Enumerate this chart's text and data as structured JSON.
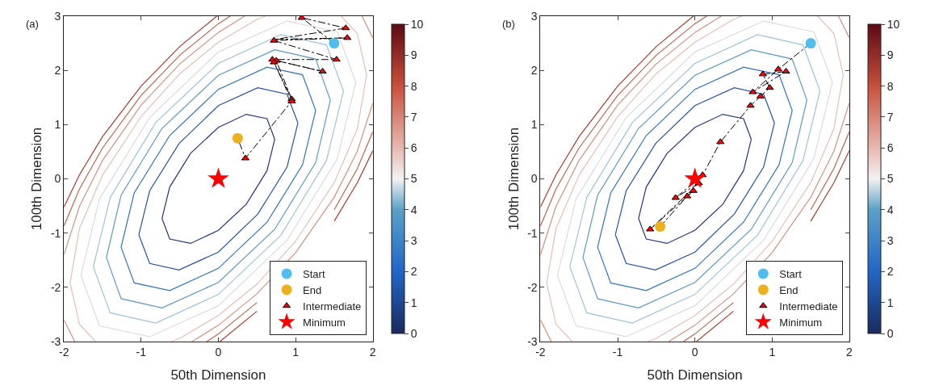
{
  "chart_data": [
    {
      "type": "scatter",
      "title": "(a)",
      "xlabel": "50th Dimension",
      "ylabel": "100th Dimension",
      "xlim": [
        -2,
        2
      ],
      "ylim": [
        -3,
        3
      ],
      "xticks": [
        -2,
        -1,
        0,
        1,
        2
      ],
      "yticks": [
        -3,
        -2,
        -1,
        0,
        1,
        2,
        3
      ],
      "clim": [
        0,
        10
      ],
      "cticks": [
        0,
        1,
        2,
        3,
        4,
        5,
        6,
        7,
        8,
        9,
        10
      ],
      "legend": "bottom right",
      "series": [
        {
          "type": "line",
          "color": "#26357f",
          "x": [
            0.73,
            0.63,
            0.36,
            0,
            -0.36,
            -0.63,
            -0.73,
            -0.63,
            -0.36,
            0,
            0.36,
            0.63,
            0.73
          ],
          "values": [
            0.73,
            1.11,
            1.19,
            0.95,
            0.47,
            -0.15,
            -0.73,
            -1.11,
            -1.19,
            -0.95,
            -0.47,
            0.15,
            0.73
          ]
        },
        {
          "type": "line",
          "color": "#2451b0",
          "x": [
            1.03,
            0.89,
            0.51,
            0,
            -0.51,
            -0.89,
            -1.03,
            -0.89,
            -0.51,
            0,
            0.51,
            0.89,
            1.03
          ],
          "values": [
            1.03,
            1.56,
            1.68,
            1.35,
            0.65,
            -0.22,
            -1.03,
            -1.56,
            -1.68,
            -1.35,
            -0.65,
            0.22,
            1.03
          ]
        },
        {
          "type": "line",
          "color": "#2f72c4",
          "x": [
            1.26,
            1.09,
            0.63,
            0,
            -0.63,
            -1.09,
            -1.26,
            -1.09,
            -0.63,
            0,
            0.63,
            1.09,
            1.26
          ],
          "values": [
            1.26,
            1.92,
            2.06,
            1.65,
            0.8,
            -0.26,
            -1.26,
            -1.92,
            -2.06,
            -1.65,
            -0.8,
            0.26,
            1.26
          ]
        },
        {
          "type": "line",
          "color": "#5b9ac6",
          "x": [
            1.45,
            1.26,
            0.73,
            0,
            -0.73,
            -1.26,
            -1.45,
            -1.26,
            -0.73,
            0,
            0.73,
            1.26,
            1.45
          ],
          "values": [
            1.45,
            2.21,
            2.38,
            1.91,
            0.93,
            -0.3,
            -1.45,
            -2.21,
            -2.38,
            -1.91,
            -0.93,
            0.3,
            1.45
          ]
        },
        {
          "type": "line",
          "color": "#9fc4d8",
          "x": [
            1.62,
            1.4,
            0.81,
            0,
            -0.81,
            -1.4,
            -1.62,
            -1.4,
            -0.81,
            0,
            0.81,
            1.4,
            1.62
          ],
          "values": [
            1.62,
            2.47,
            2.66,
            2.13,
            1.04,
            -0.34,
            -1.62,
            -2.47,
            -2.66,
            -2.13,
            -1.04,
            0.34,
            1.62
          ]
        },
        {
          "type": "line",
          "color": "#d9dde0",
          "x": [
            1.78,
            1.54,
            0.89,
            0,
            -0.89,
            -1.54,
            -1.78,
            -1.54,
            -0.89,
            0,
            0.89,
            1.54,
            1.78
          ],
          "values": [
            1.78,
            2.71,
            2.91,
            2.34,
            1.13,
            -0.37,
            -1.78,
            -2.71,
            -2.91,
            -2.34,
            -1.13,
            0.37,
            1.78
          ]
        },
        {
          "type": "line",
          "color": "#e6c0b6",
          "x": [
            1.59,
            1.8,
            1.92,
            1.8,
            1.5,
            1,
            0.5,
            0,
            -0.5,
            -0.61,
            null,
            -1.59,
            -1.8,
            -1.92,
            -1.8,
            -1.5,
            -1,
            -0.5,
            0,
            0.5,
            0.61
          ],
          "values": [
            3,
            2.68,
            1.92,
            0.92,
            -0.07,
            -1.15,
            -1.94,
            -2.52,
            -2.94,
            -3,
            null,
            -3,
            -2.68,
            -1.92,
            -0.92,
            0.07,
            1.15,
            1.94,
            2.52,
            2.94,
            3
          ]
        },
        {
          "type": "line",
          "color": "#d9907c",
          "x": [
            1.86,
            2,
            null,
            2,
            1.8,
            1.5,
            1,
            0.5,
            0,
            -0.34,
            null,
            -1.86,
            -2,
            null,
            -2,
            -1.8,
            -1.5,
            -1,
            -0.5,
            0,
            0.34
          ],
          "values": [
            3,
            2.6,
            null,
            1.4,
            0.51,
            -0.34,
            -1.36,
            -2.12,
            -2.7,
            -3,
            null,
            -3,
            -2.6,
            null,
            -1.4,
            -0.51,
            0.34,
            1.36,
            2.12,
            2.7,
            3
          ]
        },
        {
          "type": "line",
          "color": "#c8604a",
          "x": [
            2,
            1.8,
            1.5,
            1,
            0.5,
            0,
            -0.15,
            null,
            -2,
            -1.8,
            -1.5,
            -1,
            -0.5,
            0,
            0.15
          ],
          "values": [
            0.87,
            0.19,
            -0.57,
            null,
            -2.28,
            -2.86,
            -3,
            null,
            -0.87,
            -0.19,
            0.57,
            1.54,
            2.28,
            2.86,
            3
          ]
        },
        {
          "type": "line",
          "color": "#b0392d",
          "x": [
            2,
            1.8,
            1.5,
            1,
            0.5,
            0.02,
            null,
            -2,
            -1.8,
            -1.5,
            -1,
            -0.5,
            -0.02
          ],
          "values": [
            0.52,
            -0.07,
            -0.78,
            null,
            -2.44,
            -3,
            null,
            -0.52,
            0.07,
            0.78,
            1.71,
            2.44,
            3
          ]
        },
        {
          "type": "line",
          "color": "#000000",
          "line_style": "dashed",
          "x": [
            1.5,
            1.08,
            1.65,
            0.73,
            1.67,
            0.72,
            1.53,
            0.7,
            1.35,
            0.75,
            0.95,
            0.72,
            0.95,
            0.35,
            0.25
          ],
          "values": [
            2.5,
            2.97,
            2.78,
            2.57,
            2.6,
            2.55,
            2.2,
            2.2,
            1.98,
            2.18,
            1.47,
            2.15,
            1.43,
            0.38,
            0.75
          ]
        },
        {
          "type": "scatter",
          "name": "Start",
          "marker": "circle",
          "color": "#4dbeee",
          "x": [
            1.5
          ],
          "values": [
            2.5
          ]
        },
        {
          "type": "scatter",
          "name": "End",
          "marker": "circle",
          "color": "#edb120",
          "x": [
            0.25
          ],
          "values": [
            0.75
          ]
        },
        {
          "type": "scatter",
          "name": "Intermediate",
          "marker": "triangle",
          "color": "#ff0000",
          "x": [
            1.08,
            1.65,
            1.67,
            0.72,
            1.53,
            0.7,
            1.35,
            0.75,
            0.95,
            0.72,
            0.95,
            0.35
          ],
          "values": [
            2.97,
            2.78,
            2.6,
            2.55,
            2.2,
            2.2,
            1.98,
            2.18,
            1.47,
            2.15,
            1.43,
            0.38
          ]
        },
        {
          "type": "scatter",
          "name": "Minimum",
          "marker": "star",
          "color": "#ff0000",
          "x": [
            0
          ],
          "values": [
            0
          ]
        }
      ]
    },
    {
      "type": "scatter",
      "title": "(b)",
      "xlabel": "50th Dimension",
      "ylabel": "100th Dimension",
      "xlim": [
        -2,
        2
      ],
      "ylim": [
        -3,
        3
      ],
      "xticks": [
        -2,
        -1,
        0,
        1,
        2
      ],
      "yticks": [
        -3,
        -2,
        -1,
        0,
        1,
        2,
        3
      ],
      "clim": [
        0,
        10
      ],
      "cticks": [
        0,
        1,
        2,
        3,
        4,
        5,
        6,
        7,
        8,
        9,
        10
      ],
      "legend": "bottom right",
      "series": [
        {
          "type": "line",
          "color": "#26357f",
          "x": [
            0.73,
            0.63,
            0.36,
            0,
            -0.36,
            -0.63,
            -0.73,
            -0.63,
            -0.36,
            0,
            0.36,
            0.63,
            0.73
          ],
          "values": [
            0.73,
            1.11,
            1.19,
            0.95,
            0.47,
            -0.15,
            -0.73,
            -1.11,
            -1.19,
            -0.95,
            -0.47,
            0.15,
            0.73
          ]
        },
        {
          "type": "line",
          "color": "#2451b0",
          "x": [
            1.03,
            0.89,
            0.51,
            0,
            -0.51,
            -0.89,
            -1.03,
            -0.89,
            -0.51,
            0,
            0.51,
            0.89,
            1.03
          ],
          "values": [
            1.03,
            1.56,
            1.68,
            1.35,
            0.65,
            -0.22,
            -1.03,
            -1.56,
            -1.68,
            -1.35,
            -0.65,
            0.22,
            1.03
          ]
        },
        {
          "type": "line",
          "color": "#2f72c4",
          "x": [
            1.26,
            1.09,
            0.63,
            0,
            -0.63,
            -1.09,
            -1.26,
            -1.09,
            -0.63,
            0,
            0.63,
            1.09,
            1.26
          ],
          "values": [
            1.26,
            1.92,
            2.06,
            1.65,
            0.8,
            -0.26,
            -1.26,
            -1.92,
            -2.06,
            -1.65,
            -0.8,
            0.26,
            1.26
          ]
        },
        {
          "type": "line",
          "color": "#5b9ac6",
          "x": [
            1.45,
            1.26,
            0.73,
            0,
            -0.73,
            -1.26,
            -1.45,
            -1.26,
            -0.73,
            0,
            0.73,
            1.26,
            1.45
          ],
          "values": [
            1.45,
            2.21,
            2.38,
            1.91,
            0.93,
            -0.3,
            -1.45,
            -2.21,
            -2.38,
            -1.91,
            -0.93,
            0.3,
            1.45
          ]
        },
        {
          "type": "line",
          "color": "#9fc4d8",
          "x": [
            1.62,
            1.4,
            0.81,
            0,
            -0.81,
            -1.4,
            -1.62,
            -1.4,
            -0.81,
            0,
            0.81,
            1.4,
            1.62
          ],
          "values": [
            1.62,
            2.47,
            2.66,
            2.13,
            1.04,
            -0.34,
            -1.62,
            -2.47,
            -2.66,
            -2.13,
            -1.04,
            0.34,
            1.62
          ]
        },
        {
          "type": "line",
          "color": "#d9dde0",
          "x": [
            1.78,
            1.54,
            0.89,
            0,
            -0.89,
            -1.54,
            -1.78,
            -1.54,
            -0.89,
            0,
            0.89,
            1.54,
            1.78
          ],
          "values": [
            1.78,
            2.71,
            2.91,
            2.34,
            1.13,
            -0.37,
            -1.78,
            -2.71,
            -2.91,
            -2.34,
            -1.13,
            0.37,
            1.78
          ]
        },
        {
          "type": "line",
          "color": "#e6c0b6",
          "x": [
            1.59,
            1.8,
            1.92,
            1.8,
            1.5,
            1,
            0.5,
            0,
            -0.5,
            -0.61,
            null,
            -1.59,
            -1.8,
            -1.92,
            -1.8,
            -1.5,
            -1,
            -0.5,
            0,
            0.5,
            0.61
          ],
          "values": [
            3,
            2.68,
            1.92,
            0.92,
            -0.07,
            -1.15,
            -1.94,
            -2.52,
            -2.94,
            -3,
            null,
            -3,
            -2.68,
            -1.92,
            -0.92,
            0.07,
            1.15,
            1.94,
            2.52,
            2.94,
            3
          ]
        },
        {
          "type": "line",
          "color": "#d9907c",
          "x": [
            1.86,
            2,
            null,
            2,
            1.8,
            1.5,
            1,
            0.5,
            0,
            -0.34,
            null,
            -1.86,
            -2,
            null,
            -2,
            -1.8,
            -1.5,
            -1,
            -0.5,
            0,
            0.34
          ],
          "values": [
            3,
            2.6,
            null,
            1.4,
            0.51,
            -0.34,
            -1.36,
            -2.12,
            -2.7,
            -3,
            null,
            -3,
            -2.6,
            null,
            -1.4,
            -0.51,
            0.34,
            1.36,
            2.12,
            2.7,
            3
          ]
        },
        {
          "type": "line",
          "color": "#c8604a",
          "x": [
            2,
            1.8,
            1.5,
            1,
            0.5,
            0,
            -0.15,
            null,
            -2,
            -1.8,
            -1.5,
            -1,
            -0.5,
            0,
            0.15
          ],
          "values": [
            0.87,
            0.19,
            -0.57,
            null,
            -2.28,
            -2.86,
            -3,
            null,
            -0.87,
            -0.19,
            0.57,
            1.54,
            2.28,
            2.86,
            3
          ]
        },
        {
          "type": "line",
          "color": "#b0392d",
          "x": [
            2,
            1.8,
            1.5,
            1,
            0.5,
            0.02,
            null,
            -2,
            -1.8,
            -1.5,
            -1,
            -0.5,
            -0.02
          ],
          "values": [
            0.52,
            -0.07,
            -0.78,
            null,
            -2.44,
            -3,
            null,
            -0.52,
            0.07,
            0.78,
            1.71,
            2.44,
            3
          ]
        },
        {
          "type": "line",
          "color": "#000000",
          "line_style": "dashed",
          "x": [
            1.5,
            1.08,
            0.75,
            1.18,
            0.88,
            0.97,
            0.85,
            0.72,
            0.33,
            0.1,
            -0.25,
            0.05,
            -0.58,
            -0.02,
            -0.1,
            -0.45
          ],
          "values": [
            2.5,
            2.02,
            1.6,
            1.98,
            1.93,
            1.68,
            1.52,
            1.35,
            0.68,
            0.07,
            -0.35,
            -0.08,
            -0.93,
            -0.22,
            -0.32,
            -0.88
          ]
        },
        {
          "type": "scatter",
          "name": "Start",
          "marker": "circle",
          "color": "#4dbeee",
          "x": [
            1.5
          ],
          "values": [
            2.5
          ]
        },
        {
          "type": "scatter",
          "name": "End",
          "marker": "circle",
          "color": "#edb120",
          "x": [
            -0.45
          ],
          "values": [
            -0.88
          ]
        },
        {
          "type": "scatter",
          "name": "Intermediate",
          "marker": "triangle",
          "color": "#ff0000",
          "x": [
            1.08,
            0.75,
            1.18,
            0.88,
            0.97,
            0.85,
            0.72,
            0.33,
            0.1,
            -0.25,
            0.05,
            -0.58,
            -0.02,
            -0.1
          ],
          "values": [
            2.02,
            1.6,
            1.98,
            1.93,
            1.68,
            1.52,
            1.35,
            0.68,
            0.07,
            -0.35,
            -0.08,
            -0.93,
            -0.22,
            -0.32
          ]
        },
        {
          "type": "scatter",
          "name": "Minimum",
          "marker": "star",
          "color": "#ff0000",
          "x": [
            0
          ],
          "values": [
            0
          ]
        }
      ]
    }
  ]
}
